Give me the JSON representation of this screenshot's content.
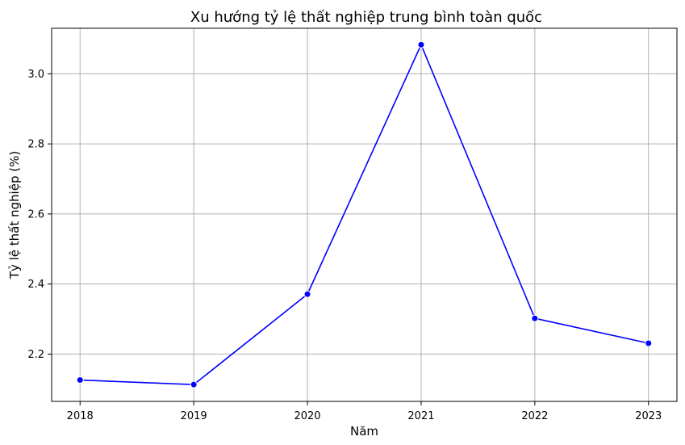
{
  "chart_data": {
    "type": "line",
    "title": "Xu hướng tỷ lệ thất nghiệp trung bình toàn quốc",
    "xlabel": "Năm",
    "ylabel": "Tỷ lệ thất nghiệp (%)",
    "x": [
      2018,
      2019,
      2020,
      2021,
      2022,
      2023
    ],
    "x_tick_labels": [
      "2018",
      "2019",
      "2020",
      "2021",
      "2022",
      "2023"
    ],
    "series": [
      {
        "values": [
          2.126,
          2.113,
          2.371,
          3.083,
          2.302,
          2.231
        ],
        "color": "#0000ff",
        "marker": "circle"
      }
    ],
    "y_ticks": [
      2.2,
      2.4,
      2.6,
      2.8,
      3.0
    ],
    "y_tick_labels": [
      "2.2",
      "2.4",
      "2.6",
      "2.8",
      "3.0"
    ],
    "xlim": [
      2017.75,
      2023.25
    ],
    "ylim": [
      2.065,
      3.13
    ],
    "grid": true
  }
}
